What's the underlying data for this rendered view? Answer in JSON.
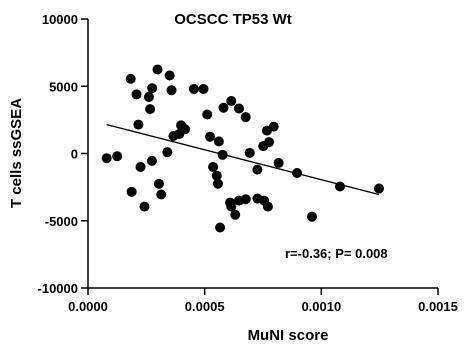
{
  "chart_data": {
    "type": "scatter",
    "title": "OCSCC TP53 Wt",
    "xlabel": "MuNI score",
    "ylabel": "T cells ssGSEA",
    "annotation": "r=-0.36; P= 0.008",
    "xlim": [
      0,
      0.0015
    ],
    "ylim": [
      -10000,
      10000
    ],
    "x_ticks": [
      0,
      0.0005,
      0.001,
      0.0015
    ],
    "x_tick_labels": [
      "0.0000",
      "0.0005",
      "0.0010",
      "0.0015"
    ],
    "y_ticks": [
      -10000,
      -5000,
      0,
      5000,
      10000
    ],
    "y_tick_labels": [
      "-10000",
      "-5000",
      "0",
      "5000",
      "10000"
    ],
    "grid": false,
    "series": [
      {
        "color": "#000000",
        "points": [
          [
            0.000183,
            5550
          ],
          [
            0.000208,
            4400
          ],
          [
            0.000261,
            4200
          ],
          [
            0.000298,
            6250
          ],
          [
            0.00035,
            5800
          ],
          [
            0.000275,
            4850
          ],
          [
            0.000358,
            4700
          ],
          [
            0.000454,
            4800
          ],
          [
            0.000495,
            4800
          ],
          [
            0.000581,
            3400
          ],
          [
            0.000614,
            3900
          ],
          [
            0.000647,
            3350
          ],
          [
            0.000676,
            2700
          ],
          [
            0.000767,
            1700
          ],
          [
            0.000796,
            2000
          ],
          [
            0.000216,
            2150
          ],
          [
            0.000266,
            3300
          ],
          [
            0.000366,
            1300
          ],
          [
            0.000391,
            1450
          ],
          [
            0.000416,
            1800
          ],
          [
            0.000399,
            2100
          ],
          [
            0.000511,
            2900
          ],
          [
            0.000523,
            1250
          ],
          [
            0.000561,
            900
          ],
          [
            0.000751,
            550
          ],
          [
            0.000776,
            850
          ],
          [
            0.000817,
            -700
          ],
          [
            0.000896,
            -1450
          ],
          [
            0.000726,
            -1200
          ],
          [
            0.000755,
            -3500
          ],
          [
            0.000676,
            -3400
          ],
          [
            0.000726,
            -3350
          ],
          [
            0.000693,
            50
          ],
          [
            0.00034,
            100
          ],
          [
            0.000125,
            -200
          ],
          [
            8e-05,
            -350
          ],
          [
            0.000274,
            -550
          ],
          [
            0.000225,
            -1000
          ],
          [
            0.000536,
            -1000
          ],
          [
            0.000552,
            -1650
          ],
          [
            0.000557,
            -2250
          ],
          [
            0.000577,
            -100
          ],
          [
            0.000187,
            -2850
          ],
          [
            0.000304,
            -2250
          ],
          [
            0.000314,
            -3050
          ],
          [
            0.000242,
            -3950
          ],
          [
            0.000609,
            -3650
          ],
          [
            0.000614,
            -3950
          ],
          [
            0.000631,
            -4550
          ],
          [
            0.000647,
            -3500
          ],
          [
            0.000771,
            -3950
          ],
          [
            0.000566,
            -5500
          ],
          [
            0.00096,
            -4700
          ],
          [
            0.00108,
            -2450
          ],
          [
            0.001247,
            -2600
          ]
        ]
      }
    ],
    "fit_line": {
      "x": [
        8e-05,
        0.001247
      ],
      "y": [
        2150,
        -3050
      ]
    }
  }
}
